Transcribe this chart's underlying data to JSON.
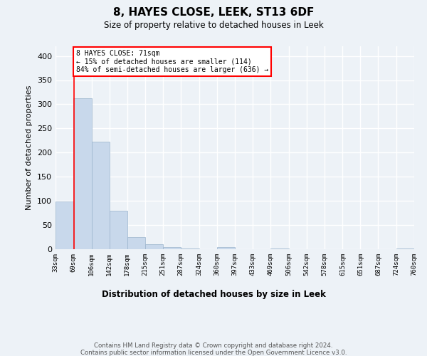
{
  "title": "8, HAYES CLOSE, LEEK, ST13 6DF",
  "subtitle": "Size of property relative to detached houses in Leek",
  "xlabel": "Distribution of detached houses by size in Leek",
  "ylabel": "Number of detached properties",
  "bar_color": "#c8d8eb",
  "bar_edge_color": "#9ab4cc",
  "bin_edges": [
    33,
    69,
    106,
    142,
    178,
    215,
    251,
    287,
    324,
    360,
    397,
    433,
    469,
    506,
    542,
    578,
    615,
    651,
    687,
    724,
    760
  ],
  "bin_labels": [
    "33sqm",
    "69sqm",
    "106sqm",
    "142sqm",
    "178sqm",
    "215sqm",
    "251sqm",
    "287sqm",
    "324sqm",
    "360sqm",
    "397sqm",
    "433sqm",
    "469sqm",
    "506sqm",
    "542sqm",
    "578sqm",
    "615sqm",
    "651sqm",
    "687sqm",
    "724sqm",
    "760sqm"
  ],
  "values": [
    99,
    312,
    222,
    80,
    25,
    11,
    5,
    1,
    0,
    5,
    0,
    0,
    1,
    0,
    0,
    0,
    0,
    0,
    0,
    2
  ],
  "ylim": [
    0,
    420
  ],
  "yticks": [
    0,
    50,
    100,
    150,
    200,
    250,
    300,
    350,
    400
  ],
  "annotation_text": "8 HAYES CLOSE: 71sqm\n← 15% of detached houses are smaller (114)\n84% of semi-detached houses are larger (636) →",
  "property_size": 71,
  "background_color": "#edf2f7",
  "grid_color": "#ffffff",
  "footer_text": "Contains HM Land Registry data © Crown copyright and database right 2024.\nContains public sector information licensed under the Open Government Licence v3.0."
}
